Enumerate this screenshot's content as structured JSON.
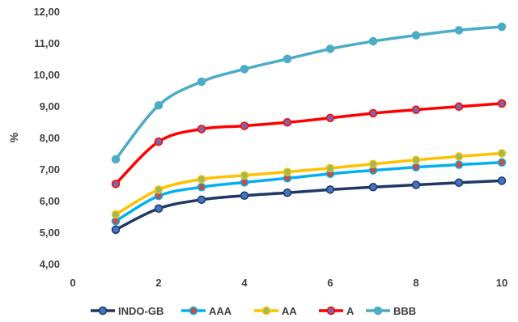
{
  "chart_data": {
    "type": "line",
    "title": "",
    "xlabel": "",
    "ylabel": "%",
    "xlim": [
      0,
      10
    ],
    "ylim": [
      4,
      12
    ],
    "x_ticks": [
      0,
      2,
      4,
      6,
      8,
      10
    ],
    "y_ticks": [
      "4,00",
      "5,00",
      "6,00",
      "7,00",
      "8,00",
      "9,00",
      "10,00",
      "11,00",
      "12,00"
    ],
    "grid": false,
    "legend_position": "bottom",
    "x": [
      1,
      2,
      3,
      4,
      5,
      6,
      7,
      8,
      9,
      10
    ],
    "series": [
      {
        "name": "INDO-GB",
        "color": "#1F3864",
        "marker_color": "#4472C4",
        "values": [
          5.08,
          5.75,
          6.03,
          6.16,
          6.25,
          6.35,
          6.43,
          6.5,
          6.57,
          6.63
        ]
      },
      {
        "name": "AAA",
        "color": "#00B0F0",
        "marker_color": "#C0504D",
        "values": [
          5.35,
          6.15,
          6.43,
          6.58,
          6.71,
          6.85,
          6.96,
          7.06,
          7.14,
          7.21
        ]
      },
      {
        "name": "AA",
        "color": "#FFC000",
        "marker_color": "#9BBB59",
        "values": [
          5.56,
          6.35,
          6.68,
          6.8,
          6.91,
          7.03,
          7.16,
          7.29,
          7.4,
          7.5
        ]
      },
      {
        "name": "A",
        "color": "#FF0000",
        "marker_color": "#8064A2",
        "values": [
          6.53,
          7.87,
          8.27,
          8.37,
          8.48,
          8.62,
          8.77,
          8.88,
          8.98,
          9.08
        ]
      },
      {
        "name": "BBB",
        "color": "#4BACC6",
        "marker_color": "#4BACC6",
        "values": [
          7.31,
          9.02,
          9.77,
          10.17,
          10.49,
          10.81,
          11.05,
          11.24,
          11.4,
          11.51
        ]
      }
    ]
  }
}
